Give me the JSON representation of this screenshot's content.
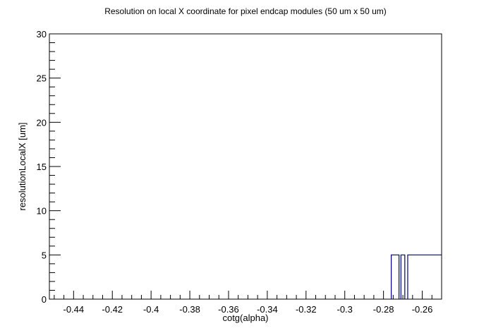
{
  "chart_data": {
    "type": "line",
    "title": "Resolution on local X coordinate for pixel endcap modules (50 um x 50 um)",
    "xlabel": "cotg(alpha)",
    "ylabel": "resolutionLocalX [um]",
    "xlim": [
      -0.4525,
      -0.25
    ],
    "ylim": [
      0,
      30
    ],
    "x_ticks": [
      -0.44,
      -0.42,
      -0.4,
      -0.38,
      -0.36,
      -0.34,
      -0.32,
      -0.3,
      -0.28,
      -0.26
    ],
    "x_tick_labels": [
      "-0.44",
      "-0.42",
      "-0.4",
      "-0.38",
      "-0.36",
      "-0.34",
      "-0.32",
      "-0.3",
      "-0.28",
      "-0.26"
    ],
    "y_ticks": [
      0,
      5,
      10,
      15,
      20,
      25,
      30
    ],
    "y_tick_labels": [
      "0",
      "5",
      "10",
      "15",
      "20",
      "25",
      "30"
    ],
    "grid": false,
    "legend": "none",
    "line_color": "#000080",
    "series": [
      {
        "bins": [
          {
            "x0": -0.276,
            "x1": -0.272,
            "y": 5
          },
          {
            "x0": -0.271,
            "x1": -0.269,
            "y": 5
          },
          {
            "x0": -0.2675,
            "x1": -0.25,
            "y": 5
          }
        ]
      }
    ]
  }
}
